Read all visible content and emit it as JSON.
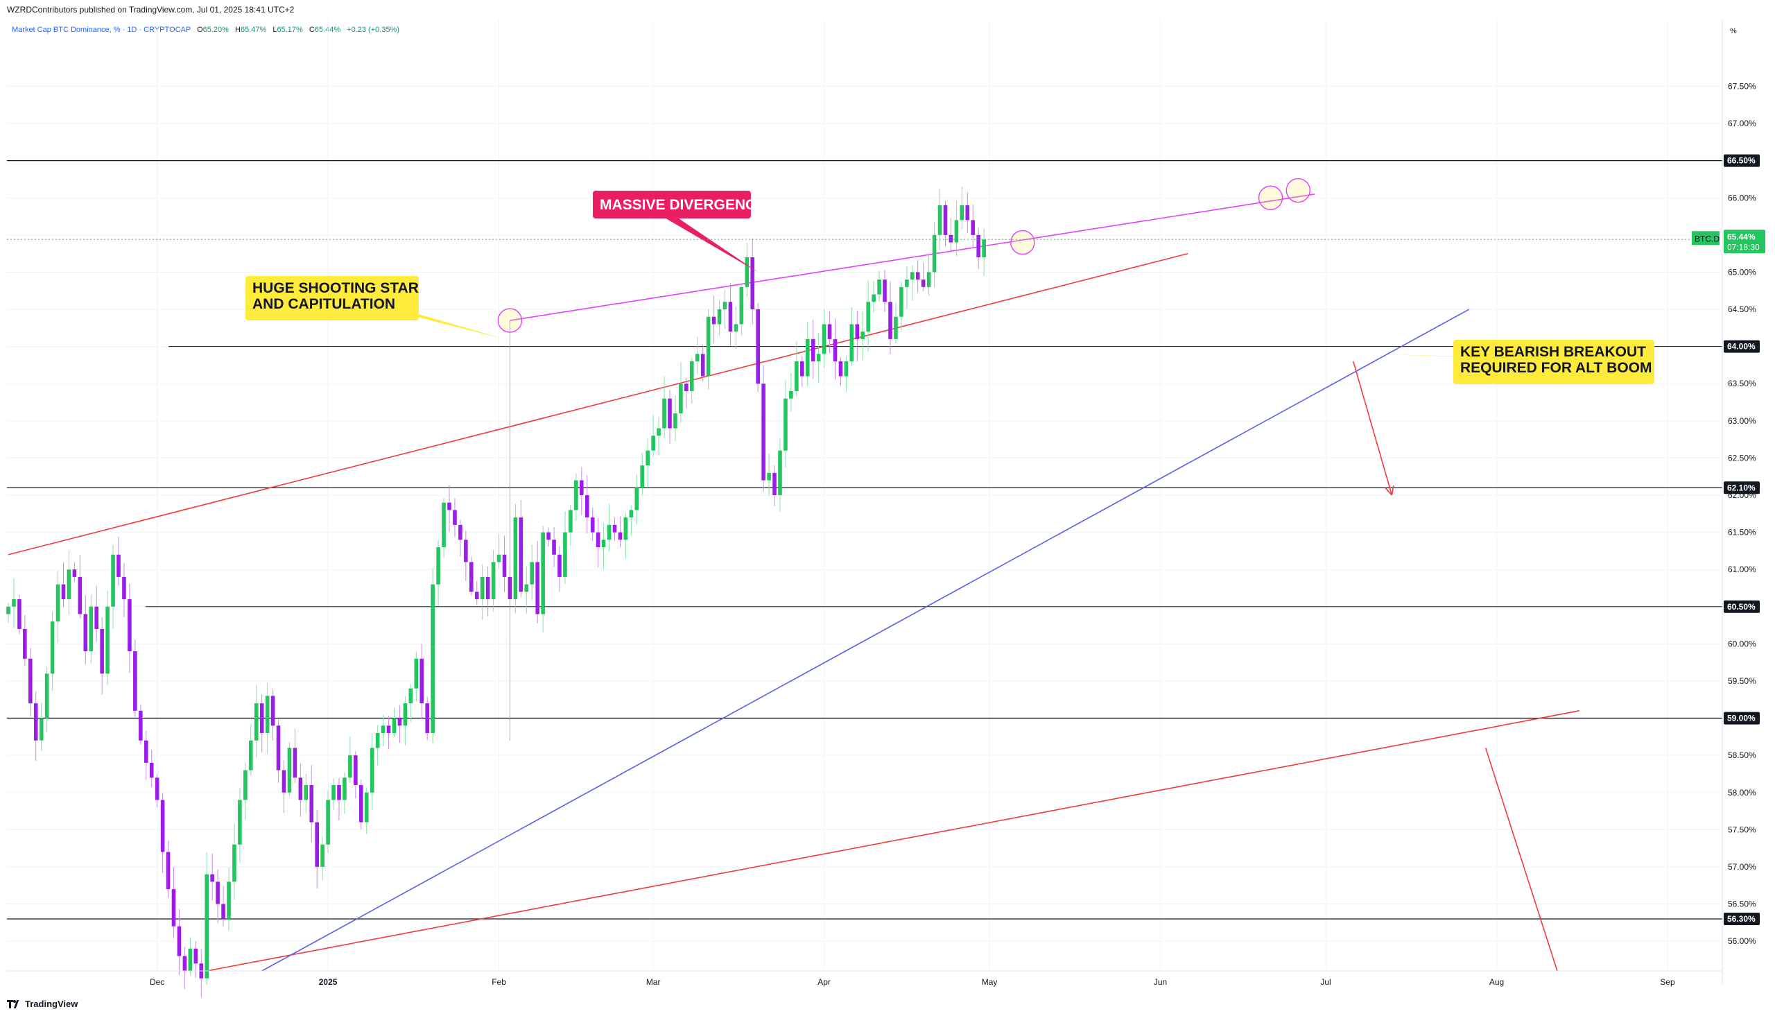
{
  "header": {
    "published": "WZRDContributors published on TradingView.com, Jul 01, 2025 18:41 UTC+2"
  },
  "legend": {
    "symbol": "Market Cap BTC Dominance, %",
    "interval": "1D",
    "source": "CRYPTOCAP",
    "o_label": "O",
    "o_value": "65.20%",
    "h_label": "H",
    "h_value": "65.47%",
    "l_label": "L",
    "l_value": "65.17%",
    "c_label": "C",
    "c_value": "65.44%",
    "change": "+0.23 (+0.35%)"
  },
  "footer": {
    "brand": "TradingView"
  },
  "colors": {
    "up": "#22c55e",
    "down": "#9b1ee8",
    "magenta_line": "#e040fb",
    "red_line": "#ef3b3b",
    "blue_line": "#5b5fe8",
    "label_yellow": "#ffeb3b",
    "label_pink": "#e91e63",
    "price_badge": "#22c55e"
  },
  "chart_data": {
    "type": "candlestick",
    "symbol": "BTC.D",
    "y_unit": "%",
    "ylim": [
      55.6,
      68.4
    ],
    "y_ticks": [
      "56.00%",
      "56.50%",
      "57.00%",
      "57.50%",
      "58.00%",
      "58.50%",
      "59.00%",
      "59.50%",
      "60.00%",
      "60.50%",
      "61.00%",
      "61.50%",
      "62.00%",
      "62.50%",
      "63.00%",
      "63.50%",
      "64.00%",
      "64.50%",
      "65.00%",
      "65.50%",
      "66.00%",
      "66.50%",
      "67.00%",
      "67.50%"
    ],
    "y_ticks_values": [
      56.0,
      56.5,
      57.0,
      57.5,
      58.0,
      58.5,
      59.0,
      59.5,
      60.0,
      60.5,
      61.0,
      61.5,
      62.0,
      62.5,
      63.0,
      63.5,
      64.0,
      64.5,
      65.0,
      65.5,
      66.0,
      66.5,
      67.0,
      67.5
    ],
    "y_unit_label": "%",
    "x_labels": [
      {
        "text": "Dec",
        "date": "2024-12-01"
      },
      {
        "text": "2025",
        "date": "2025-01-01"
      },
      {
        "text": "Feb",
        "date": "2025-02-01"
      },
      {
        "text": "Mar",
        "date": "2025-03-01"
      },
      {
        "text": "Apr",
        "date": "2025-04-01"
      },
      {
        "text": "May",
        "date": "2025-05-01"
      },
      {
        "text": "Jun",
        "date": "2025-06-01"
      },
      {
        "text": "Jul",
        "date": "2025-07-01"
      },
      {
        "text": "Aug",
        "date": "2025-08-01"
      },
      {
        "text": "Sep",
        "date": "2025-09-01"
      }
    ],
    "first_candle_date": "2024-11-04",
    "close_path": [
      60.5,
      60.6,
      60.2,
      59.8,
      59.2,
      58.7,
      59.0,
      59.6,
      60.3,
      60.8,
      60.6,
      61.0,
      60.9,
      60.4,
      59.9,
      60.5,
      60.2,
      59.6,
      60.5,
      61.2,
      60.9,
      60.6,
      59.9,
      59.1,
      58.7,
      58.4,
      58.2,
      57.9,
      57.2,
      56.7,
      56.2,
      55.8,
      55.6,
      55.9,
      55.7,
      55.5,
      56.9,
      56.8,
      56.5,
      56.3,
      56.8,
      57.3,
      57.9,
      58.3,
      58.7,
      59.2,
      58.8,
      59.3,
      58.9,
      58.3,
      58.0,
      58.6,
      58.2,
      57.9,
      58.1,
      57.6,
      57.0,
      57.3,
      57.9,
      58.1,
      57.9,
      58.2,
      58.5,
      58.1,
      57.6,
      58.0,
      58.6,
      58.8,
      58.9,
      58.8,
      59.0,
      58.9,
      59.2,
      59.4,
      59.8,
      59.2,
      58.8,
      60.8,
      61.3,
      61.9,
      61.8,
      61.6,
      61.4,
      61.1,
      60.7,
      60.6,
      60.9,
      60.6,
      61.1,
      61.2,
      60.9,
      60.6,
      61.7,
      60.7,
      60.8,
      61.1,
      60.4,
      61.5,
      61.4,
      61.2,
      60.9,
      61.5,
      61.8,
      62.2,
      62.0,
      61.7,
      61.5,
      61.3,
      61.4,
      61.6,
      61.5,
      61.4,
      61.7,
      61.8,
      62.1,
      62.4,
      62.6,
      62.8,
      62.9,
      63.3,
      62.9,
      63.1,
      63.5,
      63.4,
      63.8,
      63.9,
      63.6,
      64.4,
      64.3,
      64.5,
      64.6,
      64.2,
      64.3,
      64.8,
      65.2,
      64.5,
      63.5,
      62.2,
      62.3,
      62.0,
      62.6,
      63.3,
      63.4,
      63.8,
      63.6,
      64.1,
      63.8,
      63.9,
      64.3,
      64.1,
      63.8,
      63.6,
      63.8,
      64.3,
      64.1,
      64.2,
      64.6,
      64.7,
      64.9,
      64.6,
      64.1,
      64.4,
      64.8,
      64.9,
      65.0,
      64.9,
      64.8,
      65.0,
      65.5,
      65.9,
      65.5,
      65.4,
      65.7,
      65.9,
      65.7,
      65.5,
      65.2,
      65.44
    ],
    "levels": [
      {
        "value": 66.5,
        "label": "66.50%"
      },
      {
        "value": 64.0,
        "label": "64.00%"
      },
      {
        "value": 62.1,
        "label": "62.10%"
      },
      {
        "value": 60.5,
        "label": "60.50%"
      },
      {
        "value": 59.0,
        "label": "59.00%"
      },
      {
        "value": 56.3,
        "label": "56.30%"
      }
    ],
    "current": {
      "symbol": "BTC.D",
      "value": 65.44,
      "label": "65.44%",
      "countdown": "07:18:30"
    },
    "trendlines": [
      {
        "name": "magenta-divergence",
        "color": "magenta",
        "from": {
          "date": "2025-02-03",
          "value": 64.35
        },
        "to": {
          "date": "2025-06-29",
          "value": 66.05
        }
      },
      {
        "name": "red-upper",
        "color": "red",
        "from": {
          "date": "2024-11-04",
          "value": 61.2
        },
        "to": {
          "date": "2025-06-06",
          "value": 65.25
        }
      },
      {
        "name": "red-lower",
        "color": "red",
        "from": {
          "date": "2024-12-10",
          "value": 55.6
        },
        "to": {
          "date": "2025-08-16",
          "value": 59.1
        }
      },
      {
        "name": "blue-support",
        "color": "blue",
        "from": {
          "date": "2024-12-20",
          "value": 55.6
        },
        "to": {
          "date": "2025-07-27",
          "value": 64.5
        }
      },
      {
        "name": "vertical-spike",
        "color": "magenta",
        "from": {
          "date": "2025-02-03",
          "value": 64.35
        },
        "to": {
          "date": "2025-02-03",
          "value": 58.7
        }
      }
    ],
    "circles": [
      {
        "date": "2025-02-03",
        "value": 64.35
      },
      {
        "date": "2025-05-07",
        "value": 65.4
      },
      {
        "date": "2025-06-21",
        "value": 66.0
      },
      {
        "date": "2025-06-26",
        "value": 66.1
      }
    ],
    "arrows": [
      {
        "from": {
          "date": "2025-07-06",
          "value": 63.8
        },
        "to": {
          "date": "2025-07-13",
          "value": 62.0
        }
      },
      {
        "from": {
          "date": "2025-07-30",
          "value": 58.6
        },
        "to": {
          "date": "2025-08-12",
          "value": 55.6
        }
      }
    ],
    "annotations": [
      {
        "text": "MASSIVE DIVERGENCE",
        "style": "pink",
        "pointer_to": {
          "date": "2025-03-20",
          "value": 65.0
        }
      },
      {
        "text": "HUGE SHOOTING STAR\nAND CAPITULATION",
        "style": "yellow",
        "pointer_to": {
          "date": "2025-02-02",
          "value": 64.1
        }
      },
      {
        "text": "KEY BEARISH BREAKOUT\nREQUIRED FOR ALT BOOM",
        "style": "yellow",
        "pointer_to": {
          "date": "2025-07-09",
          "value": 63.9
        }
      }
    ]
  }
}
